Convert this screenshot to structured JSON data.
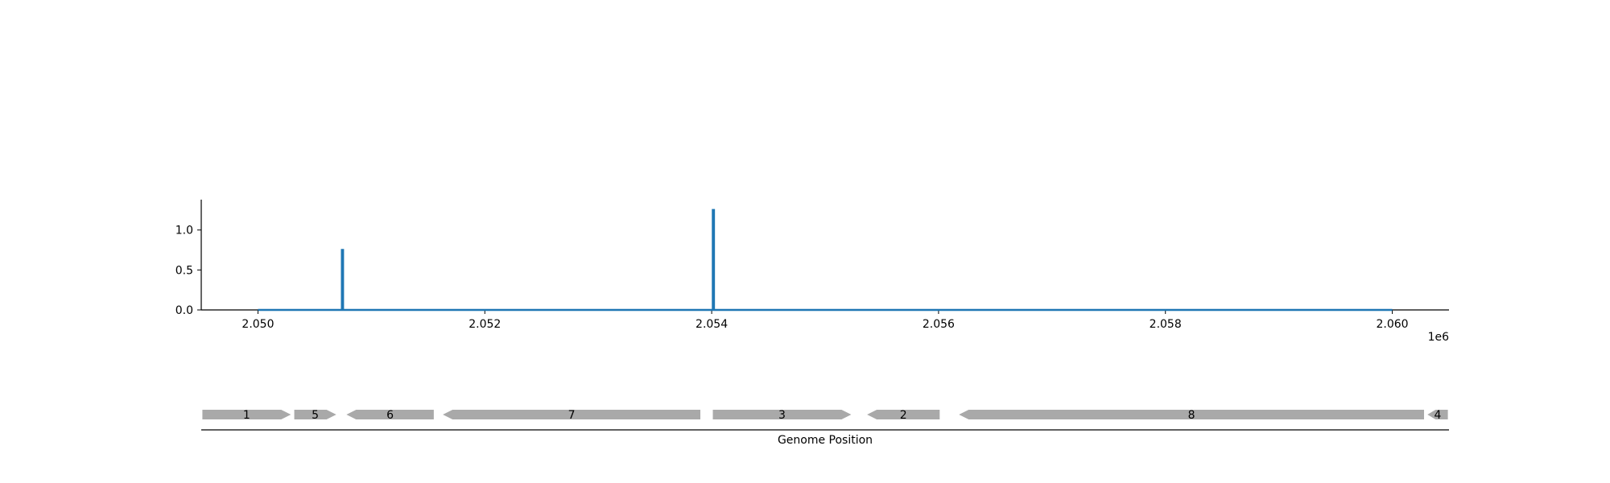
{
  "chart_data": [
    {
      "type": "line",
      "x_offset_label": "1e6",
      "xlim": [
        2049500,
        2060500
      ],
      "ylim": [
        0,
        1.38
      ],
      "x_ticks": [
        2050000,
        2052000,
        2054000,
        2056000,
        2058000,
        2060000
      ],
      "x_tick_labels": [
        "2.050",
        "2.052",
        "2.054",
        "2.056",
        "2.058",
        "2.060"
      ],
      "y_ticks": [
        0.0,
        0.5,
        1.0
      ],
      "y_tick_labels": [
        "0.0",
        "0.5",
        "1.0"
      ],
      "series": [
        {
          "color": "#1f77b4",
          "x": [
            2050000,
            2050740,
            2050740,
            2050750,
            2050750,
            2054010,
            2054010,
            2054020,
            2054020,
            2060000
          ],
          "y": [
            0,
            0,
            0.75,
            0.75,
            0,
            0,
            1.25,
            1.25,
            0,
            0
          ]
        }
      ],
      "grid": false
    },
    {
      "type": "gene-track",
      "xlabel": "Genome Position",
      "genes": [
        {
          "label": "1",
          "start": 2049510,
          "end": 2050290,
          "strand": "+"
        },
        {
          "label": "5",
          "start": 2050320,
          "end": 2050690,
          "strand": "+"
        },
        {
          "label": "6",
          "start": 2050780,
          "end": 2051550,
          "strand": "-"
        },
        {
          "label": "7",
          "start": 2051630,
          "end": 2053900,
          "strand": "-"
        },
        {
          "label": "3",
          "start": 2054010,
          "end": 2055230,
          "strand": "+"
        },
        {
          "label": "2",
          "start": 2055370,
          "end": 2056010,
          "strand": "-"
        },
        {
          "label": "8",
          "start": 2056180,
          "end": 2060280,
          "strand": "-"
        },
        {
          "label": "4",
          "start": 2060310,
          "end": 2060490,
          "strand": "-"
        }
      ],
      "gene_color": "#a9a9a9"
    }
  ]
}
